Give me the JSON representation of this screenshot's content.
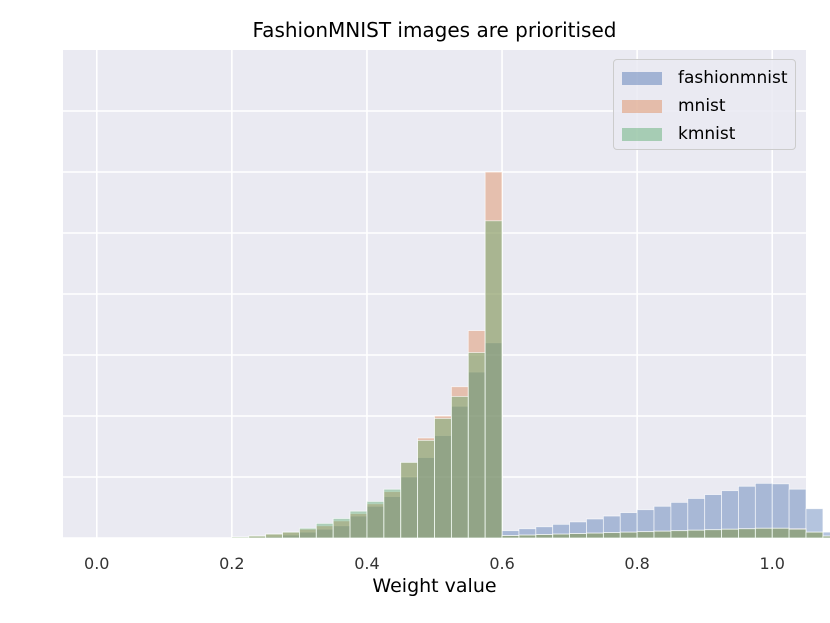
{
  "chart_data": {
    "type": "bar",
    "title": "FashionMNIST images are prioritised",
    "xlabel": "Weight value",
    "ylabel": "",
    "xlim": [
      -0.05,
      1.05
    ],
    "xticks": [
      "0.0",
      "0.2",
      "0.4",
      "0.6",
      "0.8",
      "1.0"
    ],
    "xtick_values": [
      0.0,
      0.2,
      0.4,
      0.6,
      0.8,
      1.0
    ],
    "ylim": [
      0,
      1.0
    ],
    "ytick_values": [
      0,
      0.125,
      0.25,
      0.375,
      0.5,
      0.625,
      0.75,
      0.875
    ],
    "yticks_shown": false,
    "grid": true,
    "legend_position": "top-right",
    "bin_start": 0.0,
    "bin_width": 0.025,
    "series": [
      {
        "name": "fashionmnist",
        "color": "#4c72b0",
        "values": [
          0,
          0,
          0,
          0,
          0,
          0,
          0,
          0,
          0.001,
          0.002,
          0.003,
          0.006,
          0.012,
          0.018,
          0.025,
          0.045,
          0.065,
          0.085,
          0.125,
          0.165,
          0.21,
          0.27,
          0.34,
          0.4,
          0.015,
          0.019,
          0.023,
          0.028,
          0.033,
          0.039,
          0.045,
          0.052,
          0.058,
          0.065,
          0.073,
          0.081,
          0.089,
          0.097,
          0.106,
          0.112,
          0.111,
          0.1,
          0.06,
          0.012
        ]
      },
      {
        "name": "mnist",
        "color": "#dd8452",
        "values": [
          0,
          0,
          0,
          0,
          0,
          0,
          0,
          0,
          0.002,
          0.004,
          0.008,
          0.012,
          0.018,
          0.025,
          0.035,
          0.05,
          0.07,
          0.095,
          0.155,
          0.205,
          0.25,
          0.31,
          0.425,
          0.75,
          0.005,
          0.006,
          0.007,
          0.008,
          0.009,
          0.01,
          0.011,
          0.012,
          0.013,
          0.014,
          0.015,
          0.016,
          0.017,
          0.018,
          0.019,
          0.02,
          0.02,
          0.019,
          0.012,
          0.004
        ]
      },
      {
        "name": "kmnist",
        "color": "#55a868",
        "values": [
          0,
          0,
          0,
          0,
          0,
          0,
          0,
          0,
          0.002,
          0.004,
          0.008,
          0.012,
          0.02,
          0.03,
          0.04,
          0.055,
          0.075,
          0.1,
          0.155,
          0.2,
          0.245,
          0.29,
          0.38,
          0.65,
          0.005,
          0.006,
          0.007,
          0.008,
          0.009,
          0.01,
          0.011,
          0.012,
          0.013,
          0.014,
          0.015,
          0.016,
          0.017,
          0.018,
          0.019,
          0.02,
          0.02,
          0.018,
          0.012,
          0.004
        ]
      }
    ]
  }
}
